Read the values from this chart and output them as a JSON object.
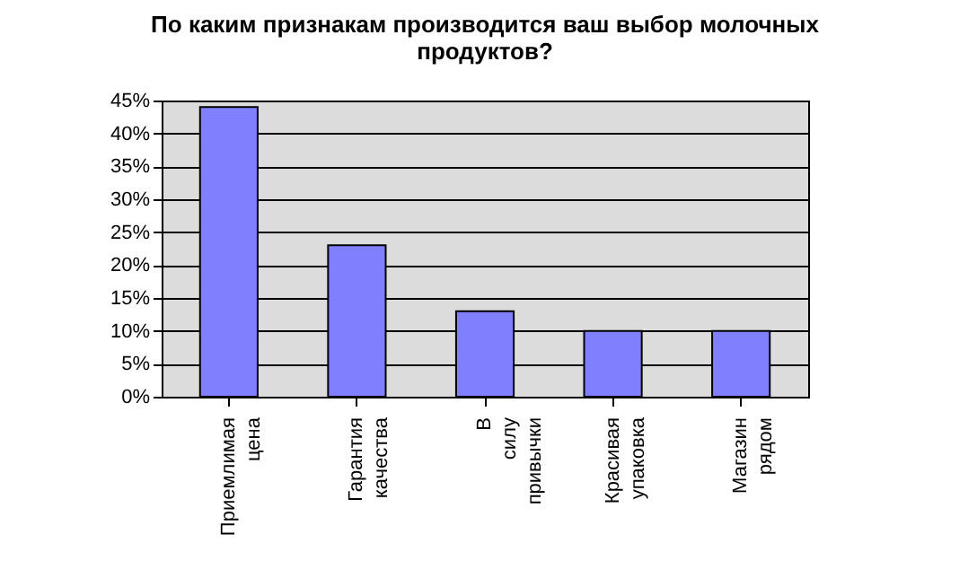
{
  "chart_data": {
    "type": "bar",
    "title": "По каким признакам производится ваш выбор молочных продуктов?",
    "categories": [
      "Приемлимая цена",
      "Гарантия качества",
      "В силу привычки",
      "Красивая упаковка",
      "Магазин рядом"
    ],
    "values": [
      44,
      23,
      13,
      10,
      10
    ],
    "color": "#8080ff",
    "ylim": [
      0,
      45
    ],
    "yticks": [
      {
        "value": 0,
        "label": "0%"
      },
      {
        "value": 5,
        "label": "5%"
      },
      {
        "value": 10,
        "label": "10%"
      },
      {
        "value": 15,
        "label": "15%"
      },
      {
        "value": 20,
        "label": "20%"
      },
      {
        "value": 25,
        "label": "25%"
      },
      {
        "value": 30,
        "label": "30%"
      },
      {
        "value": 35,
        "label": "35%"
      },
      {
        "value": 40,
        "label": "40%"
      },
      {
        "value": 45,
        "label": "45%"
      }
    ],
    "grid": "y"
  }
}
